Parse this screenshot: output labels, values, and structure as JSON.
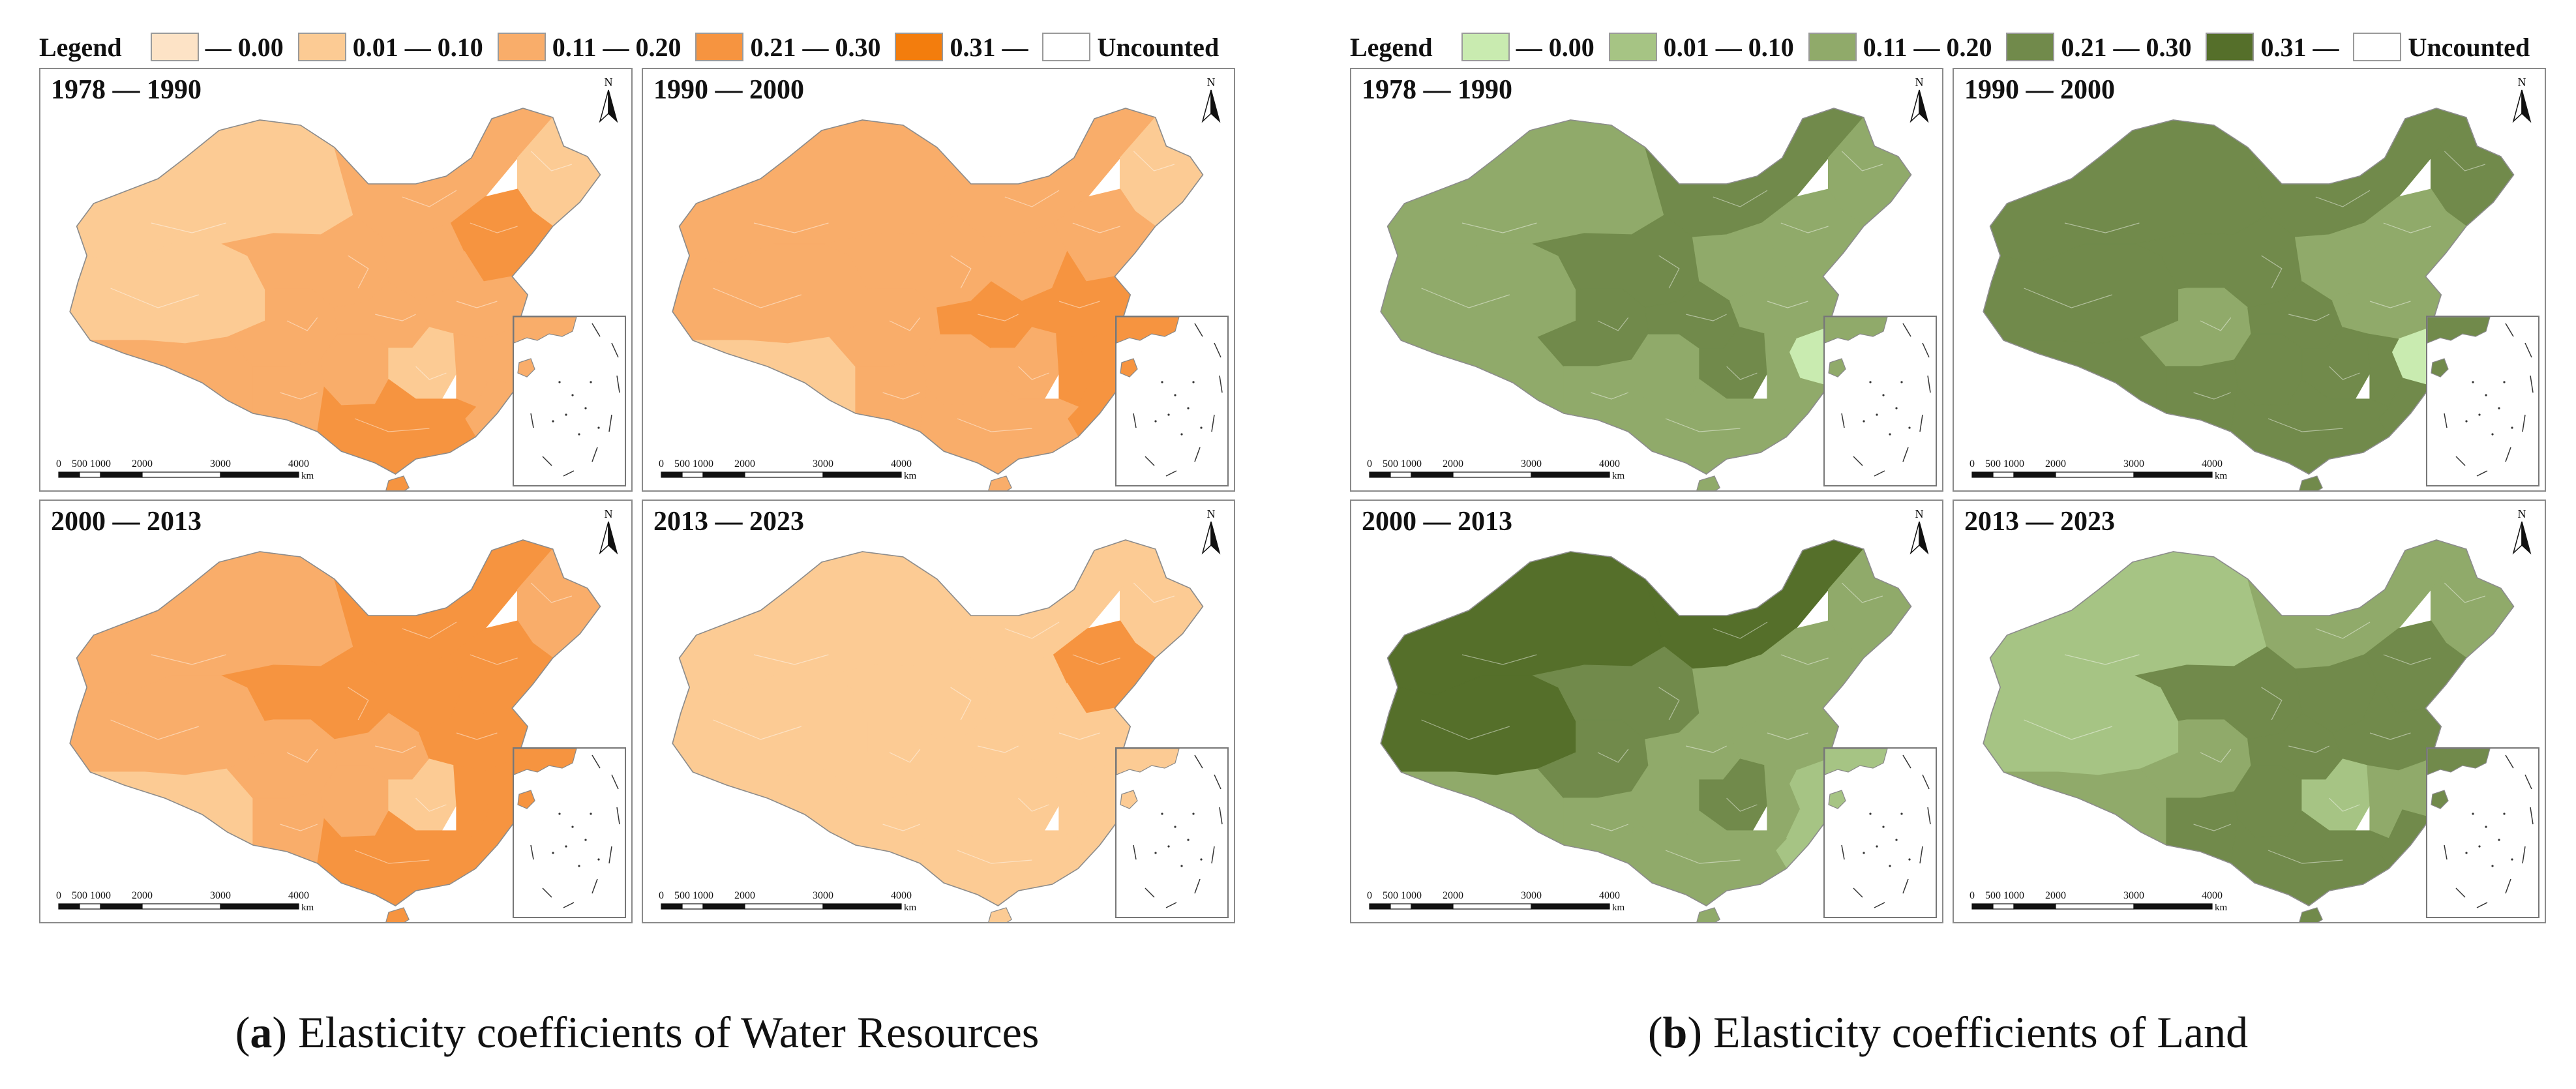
{
  "legend": {
    "title": "Legend",
    "items": [
      {
        "label": "— 0.00",
        "level": 0
      },
      {
        "label": "0.01 — 0.10",
        "level": 1
      },
      {
        "label": "0.11 — 0.20",
        "level": 2
      },
      {
        "label": "0.21 — 0.30",
        "level": 3
      },
      {
        "label": "0.31 —",
        "level": 4
      },
      {
        "label": "Uncounted",
        "level": -1
      }
    ]
  },
  "palettes": {
    "water": [
      "#fde3c6",
      "#fccb94",
      "#f9ad6a",
      "#f69440",
      "#f37d0d",
      "#ffffff"
    ],
    "land": [
      "#c9ebb0",
      "#a6c484",
      "#90aa6a",
      "#718a4b",
      "#556f2a",
      "#ffffff"
    ]
  },
  "scale_bar": {
    "ticks": [
      "0",
      "500",
      "1000",
      "2000",
      "3000",
      "4000"
    ],
    "unit": "km"
  },
  "north_label": "N",
  "figures": [
    {
      "id": "a",
      "palette": "water",
      "caption_letter": "a",
      "caption_text": " Elasticity coefficients of Water Resources",
      "panels": [
        {
          "period": "1978 — 1990",
          "levels": [
            1,
            1,
            2,
            1,
            2,
            2,
            2,
            2,
            2,
            2,
            3,
            2,
            2,
            2,
            1,
            2,
            2,
            3
          ]
        },
        {
          "period": "1990 — 2000",
          "levels": [
            2,
            2,
            2,
            1,
            1,
            2,
            2,
            2,
            2,
            2,
            2,
            3,
            3,
            3,
            2,
            3,
            3,
            2
          ]
        },
        {
          "period": "2000 — 2013",
          "levels": [
            2,
            2,
            3,
            2,
            1,
            3,
            2,
            2,
            2,
            3,
            3,
            2,
            3,
            3,
            1,
            3,
            3,
            3
          ]
        },
        {
          "period": "2013 — 2023",
          "levels": [
            1,
            1,
            1,
            1,
            1,
            1,
            1,
            1,
            1,
            1,
            3,
            1,
            1,
            1,
            1,
            1,
            1,
            1
          ]
        }
      ]
    },
    {
      "id": "b",
      "palette": "land",
      "caption_letter": "b",
      "caption_text": " Elasticity coefficients of Land",
      "panels": [
        {
          "period": "1978 — 1990",
          "levels": [
            2,
            2,
            3,
            2,
            2,
            3,
            3,
            2,
            2,
            2,
            2,
            3,
            2,
            0,
            3,
            2,
            2,
            2
          ]
        },
        {
          "period": "1990 — 2000",
          "levels": [
            3,
            3,
            3,
            3,
            3,
            3,
            2,
            3,
            3,
            2,
            2,
            3,
            2,
            0,
            3,
            3,
            3,
            3
          ]
        },
        {
          "period": "2000 — 2013",
          "levels": [
            4,
            4,
            4,
            2,
            2,
            3,
            3,
            2,
            2,
            2,
            2,
            2,
            2,
            1,
            3,
            2,
            1,
            2
          ]
        },
        {
          "period": "2013 — 2023",
          "levels": [
            1,
            1,
            2,
            2,
            2,
            3,
            2,
            3,
            3,
            3,
            3,
            3,
            3,
            2,
            1,
            2,
            3,
            3
          ]
        }
      ]
    }
  ]
}
